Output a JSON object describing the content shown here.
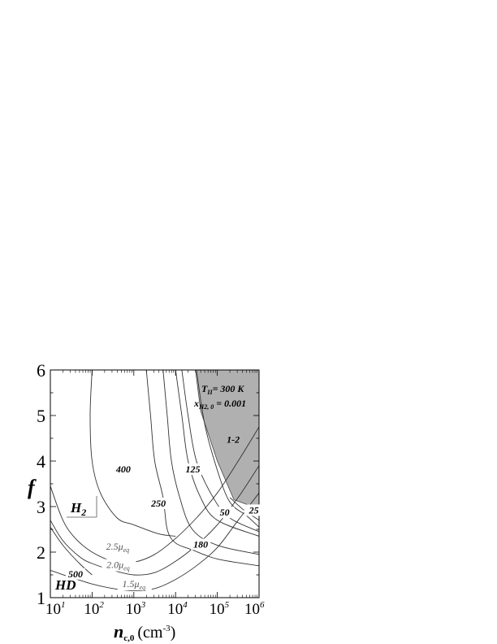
{
  "chart_data": {
    "type": "line",
    "xscale": "log",
    "xlim": [
      10,
      1000000
    ],
    "ylim": [
      1,
      6
    ],
    "grid": false,
    "x_ticks": [
      {
        "value": 10,
        "base": "10",
        "exp": "1"
      },
      {
        "value": 100,
        "base": "10",
        "exp": "2"
      },
      {
        "value": 1000,
        "base": "10",
        "exp": "3"
      },
      {
        "value": 10000,
        "base": "10",
        "exp": "4"
      },
      {
        "value": 100000,
        "base": "10",
        "exp": "5"
      },
      {
        "value": 1000000,
        "base": "10",
        "exp": "6"
      }
    ],
    "y_ticks": [
      1,
      2,
      3,
      4,
      5,
      6
    ],
    "ylabel": "f",
    "xlabel": {
      "main": "n",
      "sub": "c,0",
      "unit_open": "(cm",
      "unit_exp": "-3",
      "unit_close": ")"
    },
    "shaded_region": [
      [
        30000,
        6
      ],
      [
        40000,
        5.1
      ],
      [
        100000,
        4.0
      ],
      [
        251000,
        3.15
      ],
      [
        1000000,
        2.95
      ],
      [
        1000000,
        6
      ]
    ],
    "series": [
      {
        "label": "400",
        "points": [
          [
            100,
            6
          ],
          [
            90,
            5.0
          ],
          [
            100,
            4.0
          ],
          [
            158,
            3.3
          ],
          [
            398,
            2.75
          ],
          [
            1000,
            2.6
          ],
          [
            3981,
            2.4
          ],
          [
            10000,
            2.35
          ]
        ]
      },
      {
        "label": "250",
        "points": [
          [
            1995,
            6
          ],
          [
            2512,
            5.0
          ],
          [
            3162,
            4.0
          ],
          [
            5012,
            3.2
          ],
          [
            6310,
            2.5
          ],
          [
            10000,
            2.2
          ],
          [
            25119,
            2.05
          ],
          [
            100000,
            1.85
          ],
          [
            1000000,
            1.7
          ]
        ]
      },
      {
        "label": "180",
        "points": [
          [
            5012,
            6
          ],
          [
            6310,
            5.0
          ],
          [
            7943,
            4.0
          ],
          [
            12589,
            3.2
          ],
          [
            25119,
            2.5
          ],
          [
            100000,
            2.15
          ],
          [
            1000000,
            1.95
          ]
        ]
      },
      {
        "label": "125",
        "points": [
          [
            10000,
            6
          ],
          [
            14125,
            5.0
          ],
          [
            19953,
            4.0
          ],
          [
            39811,
            3.2
          ],
          [
            100000,
            2.7
          ],
          [
            1000000,
            2.35
          ]
        ]
      },
      {
        "label": "",
        "points": [
          [
            14125,
            6
          ],
          [
            19953,
            5.0
          ],
          [
            31623,
            4.0
          ],
          [
            79433,
            3.2
          ],
          [
            199526,
            2.75
          ],
          [
            1000000,
            2.45
          ]
        ]
      },
      {
        "label": "50",
        "points": [
          [
            31623,
            6
          ],
          [
            50119,
            4.8
          ],
          [
            100000,
            3.8
          ],
          [
            199526,
            3.1
          ],
          [
            501187,
            2.8
          ],
          [
            1000000,
            2.55
          ]
        ]
      },
      {
        "label": "25",
        "points": [
          [
            200000,
            3.2
          ],
          [
            398107,
            2.95
          ],
          [
            1000000,
            2.7
          ]
        ]
      },
      {
        "label": "500",
        "points": [
          [
            10,
            2.55
          ],
          [
            20,
            2.15
          ],
          [
            50,
            1.75
          ],
          [
            100,
            1.5
          ]
        ]
      },
      {
        "label": "2.5",
        "points": [
          [
            10,
            3.45
          ],
          [
            20,
            2.7
          ],
          [
            40,
            2.3
          ],
          [
            100,
            2.0
          ],
          [
            316,
            1.8
          ],
          [
            1000,
            1.78
          ],
          [
            3162,
            1.95
          ],
          [
            10000,
            2.3
          ],
          [
            31623,
            2.75
          ],
          [
            100000,
            3.3
          ],
          [
            316228,
            4.0
          ],
          [
            1000000,
            4.75
          ]
        ]
      },
      {
        "label": "2.0",
        "points": [
          [
            10,
            2.7
          ],
          [
            20,
            2.25
          ],
          [
            50,
            1.9
          ],
          [
            100,
            1.75
          ],
          [
            316,
            1.6
          ],
          [
            1000,
            1.5
          ],
          [
            3162,
            1.55
          ],
          [
            10000,
            1.8
          ],
          [
            31623,
            2.15
          ],
          [
            100000,
            2.6
          ],
          [
            316228,
            3.2
          ],
          [
            1000000,
            3.9
          ]
        ]
      },
      {
        "label": "1.5",
        "points": [
          [
            10,
            1.6
          ],
          [
            30,
            1.45
          ],
          [
            100,
            1.3
          ],
          [
            316,
            1.2
          ],
          [
            1000,
            1.15
          ],
          [
            3162,
            1.2
          ],
          [
            10000,
            1.4
          ],
          [
            31623,
            1.7
          ],
          [
            100000,
            2.1
          ],
          [
            316228,
            2.7
          ],
          [
            1000000,
            3.3
          ]
        ]
      }
    ],
    "annotations": [
      {
        "id": "label-400",
        "text": "400",
        "x": 560,
        "y": 3.75
      },
      {
        "id": "label-250",
        "text": "250",
        "x": 3900,
        "y": 3.0
      },
      {
        "id": "label-180",
        "text": "180",
        "x": 40000,
        "y": 2.1
      },
      {
        "id": "label-125",
        "text": "125",
        "x": 26000,
        "y": 3.75
      },
      {
        "id": "label-50",
        "text": "50",
        "x": 150000,
        "y": 2.8
      },
      {
        "id": "label-25",
        "text": "25",
        "x": 750000,
        "y": 2.85
      },
      {
        "id": "label-1-2",
        "text": "1-2",
        "x": 240000,
        "y": 4.4
      },
      {
        "id": "label-500",
        "text": "500",
        "x": 40,
        "y": 1.45
      }
    ],
    "mu_labels": [
      {
        "id": "mu-2.5",
        "num": "2.5",
        "sub": "eq",
        "x": 410,
        "y": 2.05
      },
      {
        "id": "mu-2.0",
        "num": "2.0",
        "sub": "eq",
        "x": 420,
        "y": 1.65
      },
      {
        "id": "mu-1.5",
        "num": "1.5",
        "sub": "eq",
        "x": 1000,
        "y": 1.23
      }
    ],
    "region_labels": {
      "h2": "H",
      "h2_sub": "2",
      "hd": "HD"
    },
    "info": {
      "t_main": "T",
      "t_sub": "II",
      "t_rest": "= 300 K",
      "x_main": "x",
      "x_sub": "H2, 0",
      "x_rest": " = 0.001"
    }
  }
}
